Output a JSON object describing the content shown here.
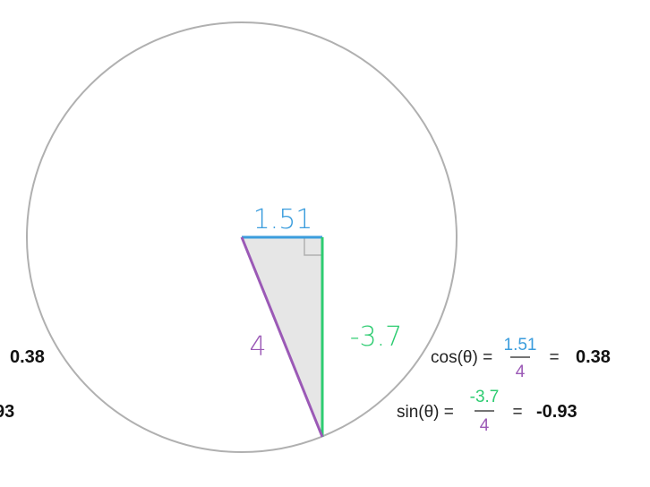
{
  "colors": {
    "adjacent": "#3b9ddd",
    "opposite": "#2ecc71",
    "hypotenuse": "#9b59b6",
    "circle": "#b0b0b0",
    "triangle_fill": "#e6e6e6",
    "text": "#222222"
  },
  "triangle": {
    "adjacent_label": "1.51",
    "opposite_label": "-3.7",
    "hypotenuse_label": "4"
  },
  "cos_eq": {
    "lhs": "cos(θ) =",
    "numerator": "1.51",
    "denominator": "4",
    "equals": "=",
    "result": "0.38"
  },
  "sin_eq": {
    "lhs": "sin(θ) =",
    "numerator": "-3.7",
    "denominator": "4",
    "equals": "=",
    "result": "-0.93"
  },
  "left_ghost": {
    "cos_result": "0.38",
    "sin_result_fragment": "93"
  }
}
